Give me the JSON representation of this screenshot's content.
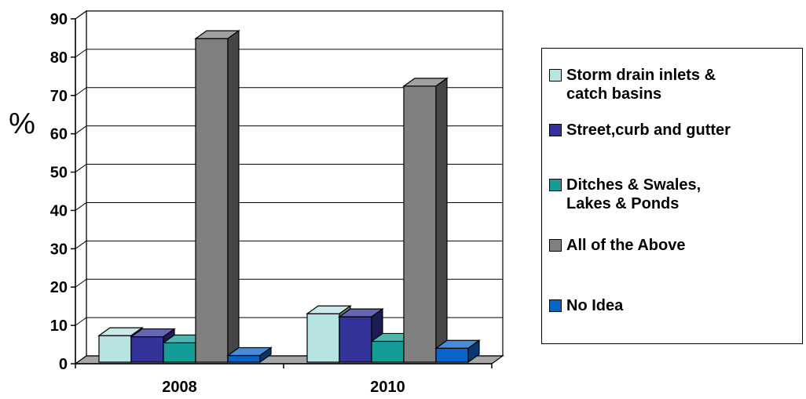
{
  "chart_data": {
    "type": "bar",
    "title": "",
    "xlabel": "",
    "ylabel": "%",
    "ylim": [
      0,
      90
    ],
    "yticks": [
      "0",
      "10",
      "20",
      "30",
      "40",
      "50",
      "60",
      "70",
      "80",
      "90"
    ],
    "grid": true,
    "legend_position": "right",
    "categories": [
      "2008",
      "2010"
    ],
    "series": [
      {
        "name": "Storm drain inlets & catch basins",
        "color": "#b7e3e3",
        "values": [
          5.5,
          11.2
        ]
      },
      {
        "name": "Street,curb and gutter",
        "color": "#333399",
        "values": [
          5.2,
          10.4
        ]
      },
      {
        "name": "Ditches & Swales, Lakes & Ponds",
        "color": "#169c96",
        "values": [
          3.6,
          4.0
        ]
      },
      {
        "name": "All of the Above",
        "color": "#808080",
        "values": [
          83.0,
          70.6
        ]
      },
      {
        "name": "No Idea",
        "color": "#0a64c8",
        "values": [
          0.3,
          2.2
        ]
      }
    ]
  },
  "legend": {
    "items": [
      {
        "label": "Storm drain inlets &\ncatch basins",
        "color": "#b7e3e3"
      },
      {
        "label": "Street,curb and gutter",
        "color": "#333399"
      },
      {
        "label": "Ditches & Swales,\nLakes & Ponds",
        "color": "#169c96"
      },
      {
        "label": "All of the Above",
        "color": "#808080"
      },
      {
        "label": "No Idea",
        "color": "#0a64c8"
      }
    ]
  }
}
